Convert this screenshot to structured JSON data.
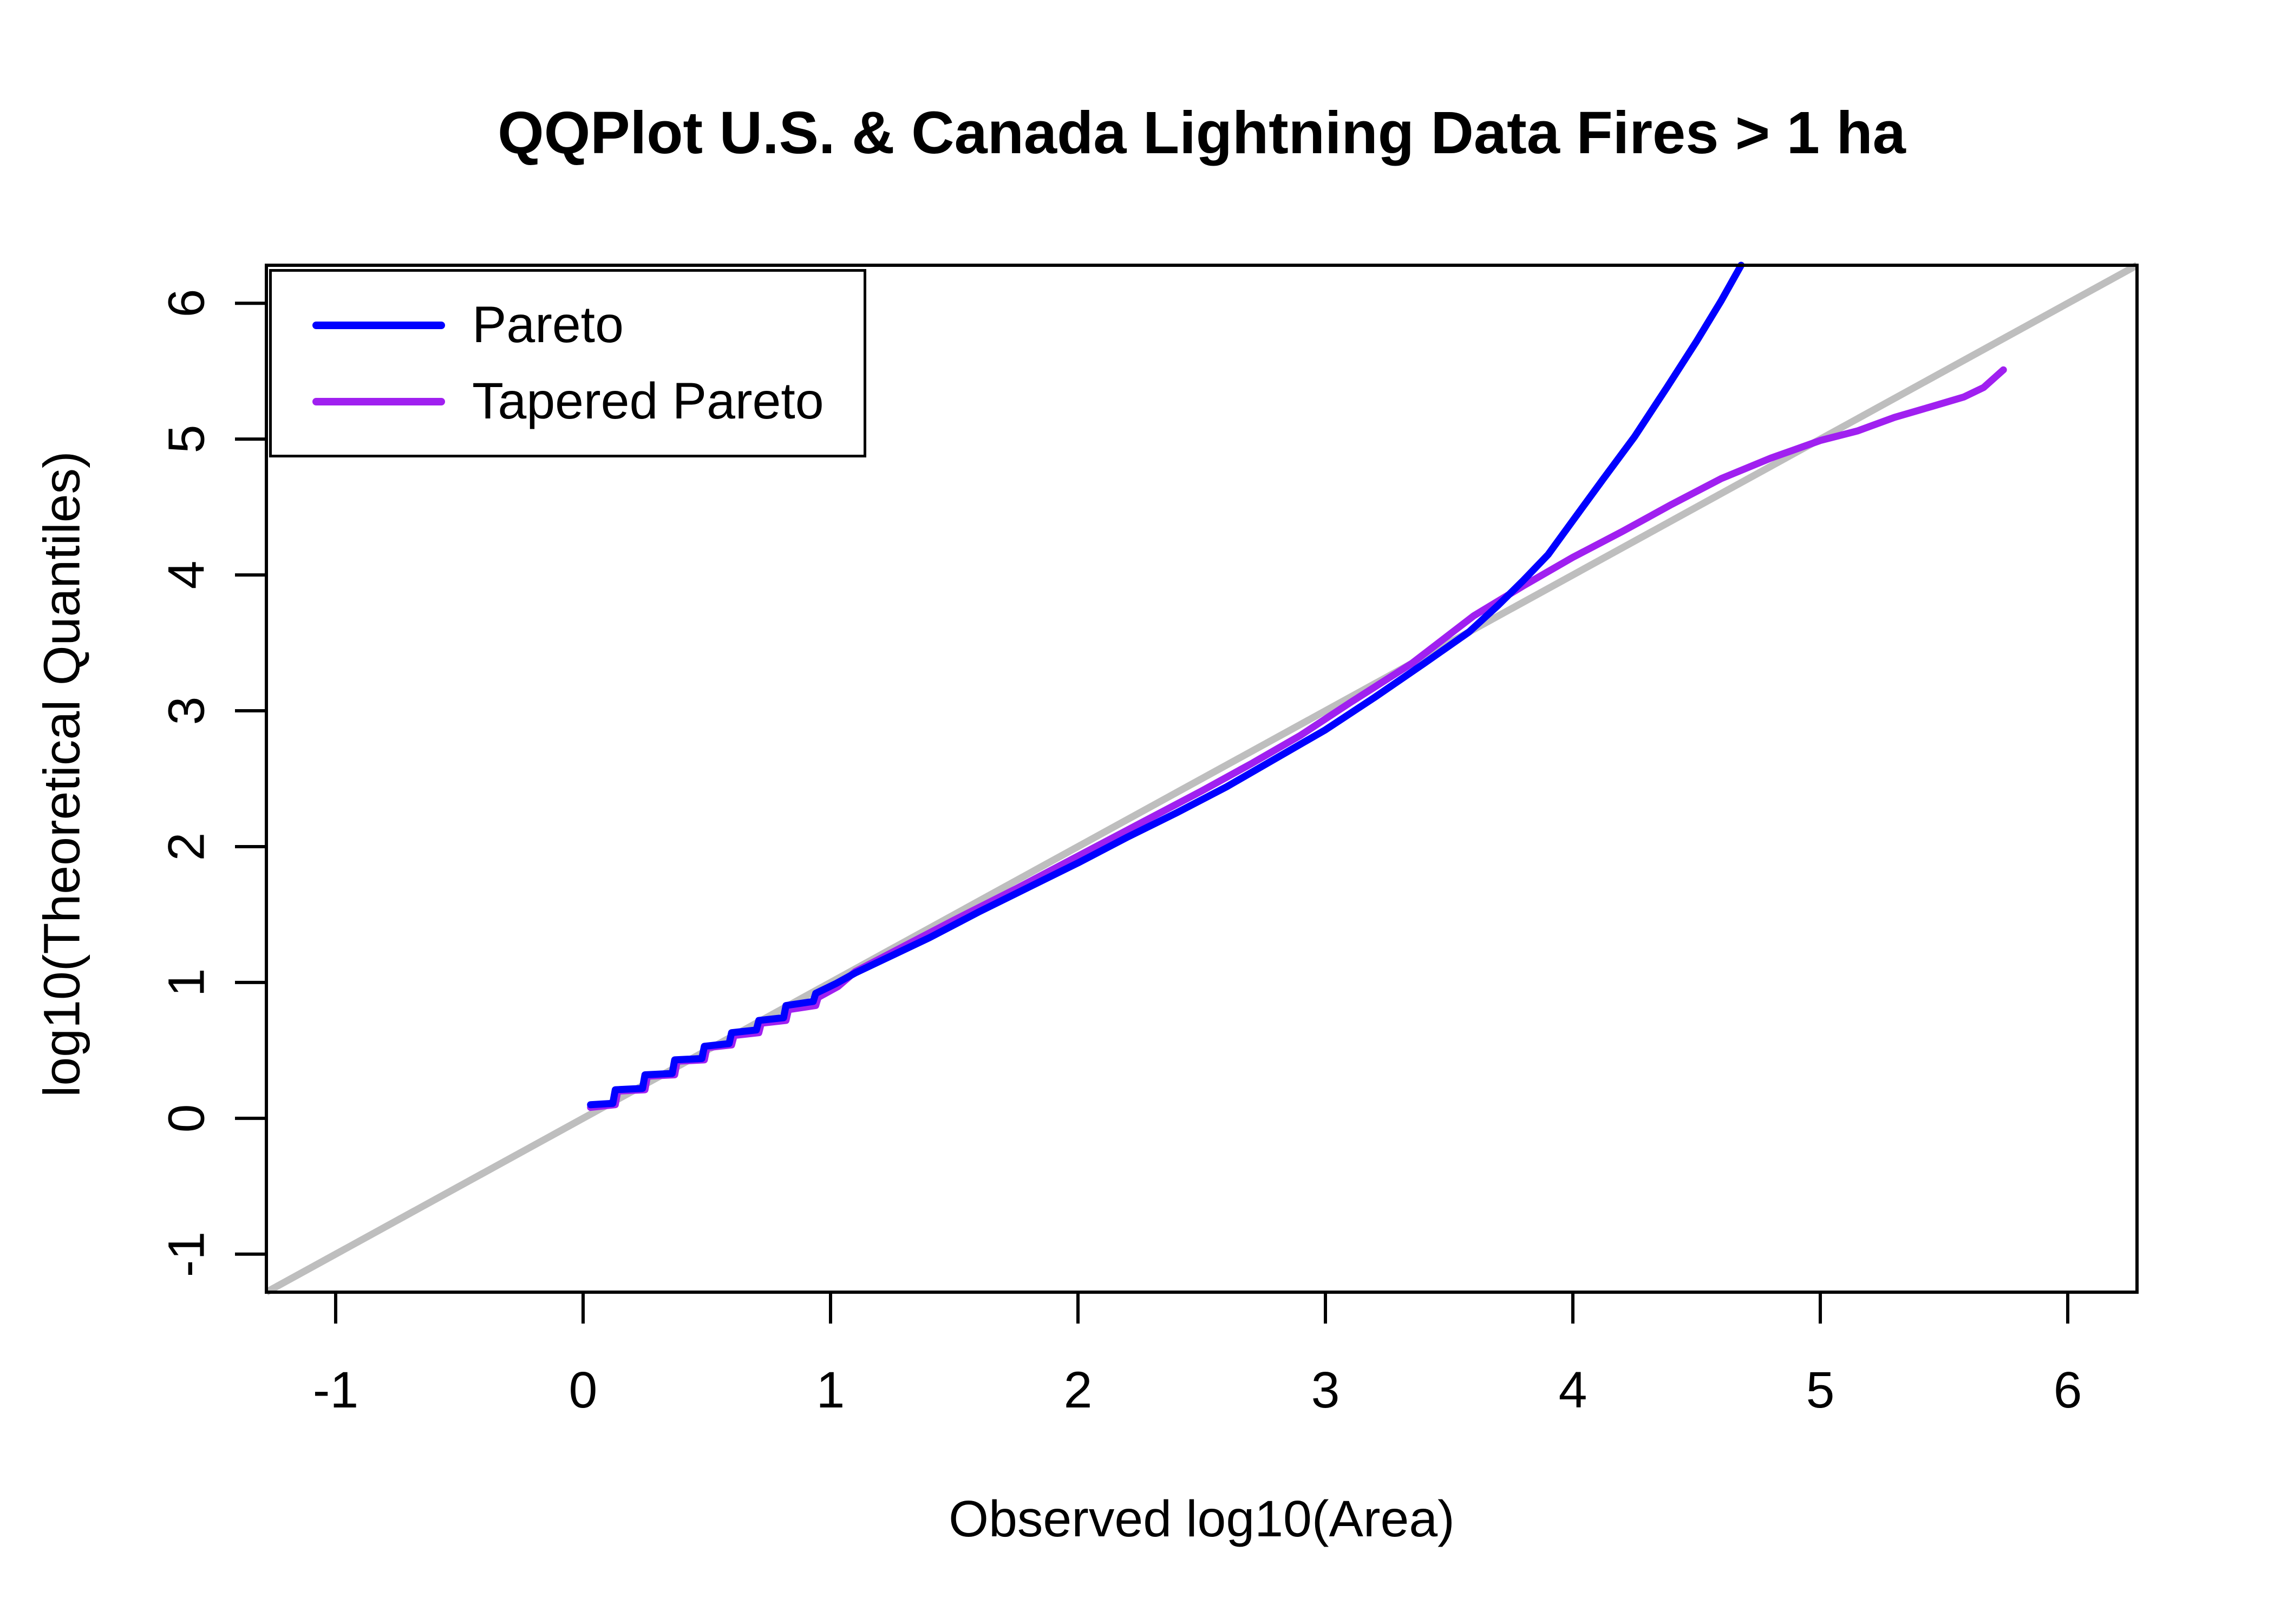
{
  "title": "QQPlot U.S. & Canada Lightning Data Fires > 1 ha",
  "colors": {
    "pareto": "#0000FF",
    "tapered_pareto": "#A020F0",
    "reference_line": "#BEBEBE",
    "frame": "#000000",
    "text": "#000000",
    "background": "#FFFFFF"
  },
  "legend": {
    "items": [
      {
        "label": "Pareto",
        "color": "#0000FF"
      },
      {
        "label": "Tapered Pareto",
        "color": "#A020F0"
      }
    ]
  },
  "axes": {
    "x": {
      "label": "Observed log10(Area)",
      "ticks": [
        -1,
        0,
        1,
        2,
        3,
        4,
        5,
        6
      ]
    },
    "y": {
      "label": "log10(Theoretical Quantiles)",
      "ticks": [
        -1,
        0,
        1,
        2,
        3,
        4,
        5,
        6
      ]
    }
  },
  "chart_data": {
    "type": "line",
    "title": "QQPlot U.S. & Canada Lightning Data Fires > 1 ha",
    "xlabel": "Observed log10(Area)",
    "ylabel": "log10(Theoretical Quantiles)",
    "xlim": [
      -1.28,
      6.28
    ],
    "ylim": [
      -1.28,
      6.28
    ],
    "grid": false,
    "legend_position": "topleft",
    "reference_line": {
      "type": "identity",
      "color": "#BEBEBE",
      "points": [
        [
          -1.28,
          -1.28
        ],
        [
          6.28,
          6.28
        ]
      ]
    },
    "series": [
      {
        "name": "Pareto",
        "color": "#0000FF",
        "points": [
          [
            0.03,
            0.1
          ],
          [
            0.12,
            0.11
          ],
          [
            0.13,
            0.21
          ],
          [
            0.24,
            0.22
          ],
          [
            0.25,
            0.32
          ],
          [
            0.36,
            0.33
          ],
          [
            0.37,
            0.43
          ],
          [
            0.48,
            0.44
          ],
          [
            0.49,
            0.53
          ],
          [
            0.59,
            0.55
          ],
          [
            0.6,
            0.63
          ],
          [
            0.7,
            0.65
          ],
          [
            0.71,
            0.72
          ],
          [
            0.81,
            0.74
          ],
          [
            0.82,
            0.83
          ],
          [
            0.93,
            0.86
          ],
          [
            0.94,
            0.92
          ],
          [
            1.02,
            0.99
          ],
          [
            1.1,
            1.07
          ],
          [
            1.25,
            1.2
          ],
          [
            1.4,
            1.33
          ],
          [
            1.6,
            1.52
          ],
          [
            1.8,
            1.7
          ],
          [
            2.0,
            1.88
          ],
          [
            2.2,
            2.07
          ],
          [
            2.4,
            2.25
          ],
          [
            2.6,
            2.44
          ],
          [
            2.8,
            2.65
          ],
          [
            3.0,
            2.86
          ],
          [
            3.2,
            3.1
          ],
          [
            3.4,
            3.35
          ],
          [
            3.58,
            3.58
          ],
          [
            3.7,
            3.78
          ],
          [
            3.8,
            3.96
          ],
          [
            3.9,
            4.15
          ],
          [
            4.0,
            4.4
          ],
          [
            4.12,
            4.7
          ],
          [
            4.25,
            5.02
          ],
          [
            4.38,
            5.38
          ],
          [
            4.5,
            5.72
          ],
          [
            4.6,
            6.02
          ],
          [
            4.68,
            6.28
          ]
        ]
      },
      {
        "name": "Tapered Pareto",
        "color": "#A020F0",
        "points": [
          [
            0.03,
            0.08
          ],
          [
            0.13,
            0.1
          ],
          [
            0.14,
            0.2
          ],
          [
            0.25,
            0.21
          ],
          [
            0.26,
            0.31
          ],
          [
            0.37,
            0.32
          ],
          [
            0.38,
            0.42
          ],
          [
            0.49,
            0.43
          ],
          [
            0.5,
            0.52
          ],
          [
            0.6,
            0.54
          ],
          [
            0.61,
            0.61
          ],
          [
            0.71,
            0.63
          ],
          [
            0.72,
            0.7
          ],
          [
            0.82,
            0.72
          ],
          [
            0.83,
            0.8
          ],
          [
            0.94,
            0.83
          ],
          [
            0.95,
            0.89
          ],
          [
            1.03,
            0.97
          ],
          [
            1.1,
            1.08
          ],
          [
            1.3,
            1.27
          ],
          [
            1.5,
            1.46
          ],
          [
            1.75,
            1.69
          ],
          [
            2.0,
            1.93
          ],
          [
            2.25,
            2.17
          ],
          [
            2.5,
            2.41
          ],
          [
            2.7,
            2.61
          ],
          [
            2.9,
            2.82
          ],
          [
            3.1,
            3.06
          ],
          [
            3.35,
            3.35
          ],
          [
            3.6,
            3.7
          ],
          [
            3.8,
            3.92
          ],
          [
            4.0,
            4.13
          ],
          [
            4.2,
            4.32
          ],
          [
            4.4,
            4.52
          ],
          [
            4.6,
            4.71
          ],
          [
            4.8,
            4.86
          ],
          [
            5.0,
            4.99
          ],
          [
            5.15,
            5.06
          ],
          [
            5.3,
            5.16
          ],
          [
            5.45,
            5.24
          ],
          [
            5.58,
            5.31
          ],
          [
            5.66,
            5.38
          ],
          [
            5.74,
            5.51
          ]
        ]
      }
    ]
  }
}
